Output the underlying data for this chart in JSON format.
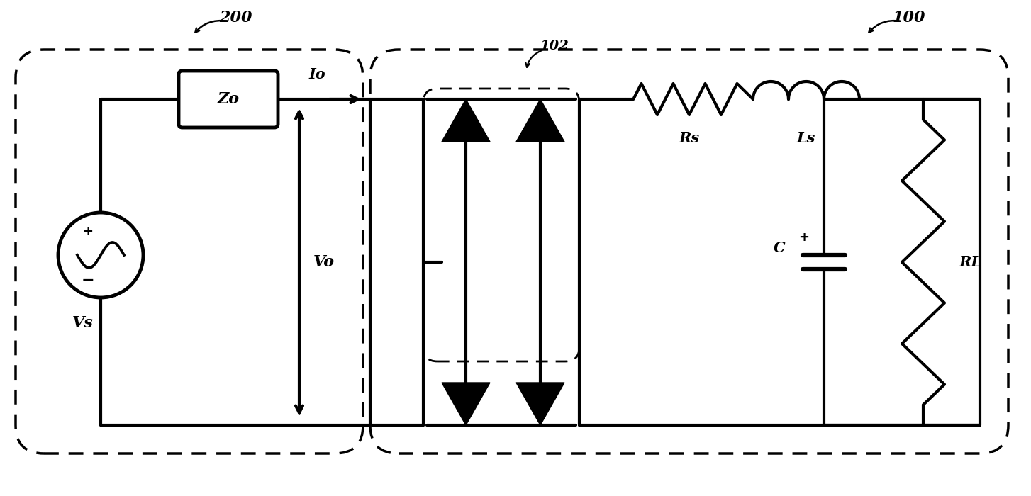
{
  "bg_color": "#ffffff",
  "line_color": "#000000",
  "line_width": 3.0,
  "label_200": "200",
  "label_100": "100",
  "label_102": "102",
  "label_Zo": "Zo",
  "label_Io": "Io",
  "label_Vo": "Vo",
  "label_Vs": "Vs",
  "label_Rs": "Rs",
  "label_Ls": "Ls",
  "label_C": "C",
  "label_RL": "RL",
  "figsize": [
    14.54,
    7.0
  ],
  "dpi": 100
}
